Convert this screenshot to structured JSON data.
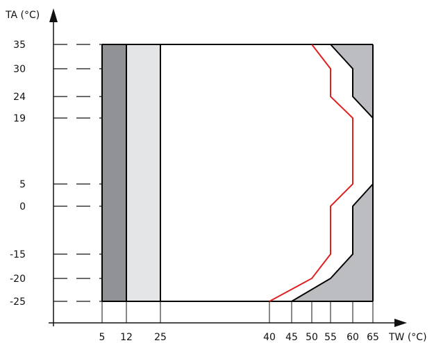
{
  "chart_data": {
    "type": "area",
    "x_axis_label": "TW (°C)",
    "y_axis_label": "TA (°C)",
    "x_ticks": [
      5,
      12,
      25,
      40,
      45,
      50,
      55,
      60,
      65
    ],
    "x_tick_labels": [
      "5",
      "12",
      "25",
      "40",
      "45",
      "50",
      "55",
      "60",
      "65"
    ],
    "y_ticks": [
      35,
      30,
      24,
      19,
      5,
      0,
      -15,
      -20,
      -25
    ],
    "y_tick_labels": [
      "35",
      "30",
      "24",
      "19",
      "5",
      "0",
      "-15",
      "-20",
      "-25"
    ],
    "xlim": [
      5,
      65
    ],
    "ylim": [
      -25,
      35
    ],
    "regions": [
      {
        "x_range": [
          5,
          12
        ],
        "y_range": [
          -25,
          35
        ],
        "color": "#909295"
      },
      {
        "x_range": [
          12,
          25
        ],
        "y_range": [
          -25,
          35
        ],
        "color": "#e4e5e7"
      }
    ],
    "outer_boundary": {
      "color": "#000000",
      "fill": "#bcbdc0",
      "points": [
        [
          50,
          35
        ],
        [
          55,
          30
        ],
        [
          55,
          24
        ],
        [
          60,
          19
        ],
        [
          60,
          5
        ],
        [
          55,
          0
        ],
        [
          55,
          -15
        ],
        [
          50,
          -20
        ],
        [
          40,
          -25
        ]
      ]
    },
    "red_boundary": {
      "color": "#e02020",
      "points": [
        [
          50,
          35
        ],
        [
          55,
          30
        ],
        [
          55,
          24
        ],
        [
          60,
          19
        ],
        [
          60,
          5
        ],
        [
          55,
          0
        ],
        [
          55,
          -15
        ],
        [
          50,
          -20
        ],
        [
          40,
          -25
        ]
      ]
    },
    "black_boundary": {
      "color": "#000000",
      "points": [
        [
          55,
          35
        ],
        [
          60,
          30
        ],
        [
          60,
          24
        ],
        [
          65,
          19
        ],
        [
          65,
          5
        ],
        [
          60,
          0
        ],
        [
          60,
          -15
        ],
        [
          55,
          -20
        ],
        [
          45,
          -25
        ]
      ]
    },
    "frame_color": "#000000",
    "gray_wedge_fill": "#bcbdc0",
    "grid": false
  }
}
